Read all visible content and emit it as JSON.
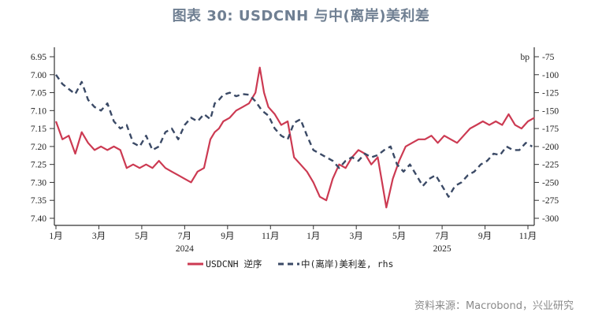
{
  "title": "图表 30: USDCNH 与中(离岸)美利差",
  "source": "资料来源：Macrobond，兴业研究",
  "colors": {
    "usdcnh": "#cc3a52",
    "spread": "#3b4a66",
    "axis": "#333333"
  },
  "chart_data": {
    "type": "line",
    "title": "图表 30: USDCNH 与中(离岸)美利差",
    "xlabel": "",
    "ylabel": "",
    "y_left": {
      "label": "",
      "reversed": true,
      "range": [
        6.95,
        7.4
      ],
      "ticks": [
        "6.95",
        "7.00",
        "7.05",
        "7.10",
        "7.15",
        "7.20",
        "7.25",
        "7.30",
        "7.35",
        "7.40"
      ]
    },
    "y_right": {
      "label": "bp",
      "range": [
        -75,
        -300
      ],
      "ticks": [
        "-75",
        "-100",
        "-125",
        "-150",
        "-175",
        "-200",
        "-225",
        "-250",
        "-275",
        "-300"
      ]
    },
    "x_ticks": [
      "1月",
      "3月",
      "5月",
      "7月",
      "9月",
      "11月",
      "1月",
      "3月",
      "5月",
      "7月",
      "9月",
      "11月"
    ],
    "x_years": [
      {
        "label": "2024",
        "at_tick": 3
      },
      {
        "label": "2025",
        "at_tick": 9
      }
    ],
    "grid": false,
    "legend_position": "bottom",
    "legend": [
      "USDCNH 逆序",
      "中(离岸)美利差, rhs"
    ],
    "series": [
      {
        "name": "USDCNH 逆序",
        "axis": "left",
        "style": "solid",
        "x_month": [
          0,
          0.3,
          0.6,
          0.9,
          1.2,
          1.5,
          1.8,
          2.1,
          2.4,
          2.7,
          3.0,
          3.3,
          3.6,
          3.9,
          4.2,
          4.5,
          4.8,
          5.1,
          5.4,
          5.7,
          6.0,
          6.3,
          6.6,
          6.9,
          7.2,
          7.4,
          7.6,
          7.8,
          8.1,
          8.4,
          8.7,
          9.0,
          9.3,
          9.5,
          9.7,
          9.9,
          10.2,
          10.5,
          10.8,
          11.1,
          11.4,
          11.7,
          12.0,
          12.3,
          12.6,
          12.9,
          13.2,
          13.5,
          13.8,
          14.1,
          14.4,
          14.7,
          15.0,
          15.2,
          15.4,
          15.7,
          16.0,
          16.3,
          16.6,
          16.9,
          17.2,
          17.5,
          17.8,
          18.1,
          18.4,
          18.7,
          19.0,
          19.3,
          19.6,
          19.9,
          20.2,
          20.5,
          20.8,
          21.1,
          21.4,
          21.7,
          22.0,
          22.3
        ],
        "values": [
          7.13,
          7.18,
          7.17,
          7.22,
          7.16,
          7.19,
          7.21,
          7.2,
          7.21,
          7.2,
          7.21,
          7.26,
          7.25,
          7.26,
          7.25,
          7.26,
          7.24,
          7.26,
          7.27,
          7.28,
          7.29,
          7.3,
          7.27,
          7.26,
          7.18,
          7.16,
          7.15,
          7.13,
          7.12,
          7.1,
          7.09,
          7.08,
          7.05,
          6.98,
          7.05,
          7.09,
          7.11,
          7.14,
          7.13,
          7.23,
          7.25,
          7.27,
          7.3,
          7.34,
          7.35,
          7.29,
          7.25,
          7.26,
          7.23,
          7.21,
          7.22,
          7.25,
          7.23,
          7.3,
          7.37,
          7.29,
          7.24,
          7.2,
          7.19,
          7.18,
          7.18,
          7.17,
          7.19,
          7.17,
          7.18,
          7.19,
          7.17,
          7.15,
          7.14,
          7.13,
          7.14,
          7.13,
          7.14,
          7.11,
          7.14,
          7.15,
          7.13,
          7.12
        ]
      },
      {
        "name": "中(离岸)美利差, rhs",
        "axis": "right",
        "style": "dashed",
        "x_month": [
          0,
          0.3,
          0.6,
          0.9,
          1.2,
          1.5,
          1.8,
          2.1,
          2.4,
          2.7,
          3.0,
          3.3,
          3.6,
          3.9,
          4.2,
          4.5,
          4.8,
          5.1,
          5.4,
          5.7,
          6.0,
          6.3,
          6.6,
          6.9,
          7.2,
          7.4,
          7.6,
          7.8,
          8.1,
          8.4,
          8.7,
          9.0,
          9.3,
          9.6,
          9.9,
          10.2,
          10.5,
          10.8,
          11.1,
          11.4,
          11.7,
          12.0,
          12.3,
          12.6,
          12.9,
          13.2,
          13.5,
          13.8,
          14.1,
          14.4,
          14.7,
          15.0,
          15.3,
          15.6,
          15.9,
          16.2,
          16.5,
          16.8,
          17.1,
          17.4,
          17.7,
          18.0,
          18.3,
          18.6,
          18.9,
          19.2,
          19.5,
          19.8,
          20.1,
          20.4,
          20.7,
          21.0,
          21.3,
          21.6,
          21.9,
          22.2
        ],
        "values": [
          -100,
          -113,
          -120,
          -127,
          -110,
          -135,
          -145,
          -150,
          -140,
          -165,
          -175,
          -170,
          -195,
          -200,
          -185,
          -205,
          -200,
          -180,
          -175,
          -190,
          -170,
          -160,
          -165,
          -155,
          -162,
          -140,
          -135,
          -128,
          -125,
          -130,
          -127,
          -128,
          -137,
          -150,
          -157,
          -175,
          -185,
          -190,
          -167,
          -162,
          -185,
          -205,
          -210,
          -215,
          -220,
          -230,
          -220,
          -215,
          -220,
          -210,
          -215,
          -212,
          -205,
          -200,
          -225,
          -235,
          -225,
          -240,
          -255,
          -245,
          -240,
          -255,
          -270,
          -255,
          -250,
          -240,
          -235,
          -225,
          -220,
          -210,
          -212,
          -200,
          -205,
          -205,
          -195,
          -200
        ]
      }
    ]
  },
  "legend": {
    "usdcnh_label": "USDCNH 逆序",
    "spread_label": "中(离岸)美利差, rhs"
  }
}
